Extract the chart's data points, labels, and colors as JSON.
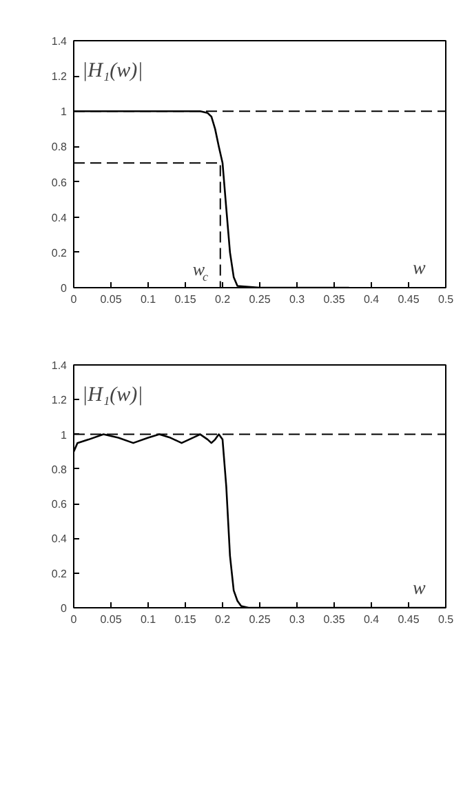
{
  "chart_data": [
    {
      "type": "line",
      "xlabel": "w",
      "ylabel": "|H₁(w)|",
      "xlim": [
        0,
        0.5
      ],
      "ylim": [
        0,
        1.4
      ],
      "xticks": [
        0,
        0.05,
        0.1,
        0.15,
        0.2,
        0.25,
        0.3,
        0.35,
        0.4,
        0.45,
        0.5
      ],
      "yticks": [
        0,
        0.2,
        0.4,
        0.6,
        0.8,
        1,
        1.2,
        1.4
      ],
      "grid": false,
      "series": [
        {
          "color": "#000000",
          "line_style": "solid",
          "x": [
            0,
            0.17,
            0.18,
            0.185,
            0.19,
            0.195,
            0.2,
            0.205,
            0.21,
            0.215,
            0.22,
            0.25,
            0.37
          ],
          "values": [
            1,
            1,
            0.99,
            0.97,
            0.9,
            0.8,
            0.707,
            0.45,
            0.2,
            0.06,
            0.01,
            0,
            0
          ]
        },
        {
          "color": "#000000",
          "line_style": "dashed",
          "x": [
            0,
            0.197,
            0.197
          ],
          "values": [
            0.707,
            0.707,
            0
          ]
        }
      ],
      "ref_lines": [
        {
          "axis": "y",
          "value": 1,
          "line_style": "dashed",
          "color": "#000000"
        }
      ],
      "annotations": [
        {
          "text": "w$_{c}$",
          "x": 0.197,
          "y": 0
        }
      ]
    },
    {
      "type": "line",
      "xlabel": "w",
      "ylabel": "|H₁(w)|",
      "xlim": [
        0,
        0.5
      ],
      "ylim": [
        0,
        1.4
      ],
      "xticks": [
        0,
        0.05,
        0.1,
        0.15,
        0.2,
        0.25,
        0.3,
        0.35,
        0.4,
        0.45,
        0.5
      ],
      "yticks": [
        0,
        0.2,
        0.4,
        0.6,
        0.8,
        1,
        1.2,
        1.4
      ],
      "grid": false,
      "series": [
        {
          "color": "#000000",
          "line_style": "solid",
          "x": [
            0,
            0.005,
            0.02,
            0.04,
            0.06,
            0.08,
            0.1,
            0.115,
            0.13,
            0.145,
            0.16,
            0.17,
            0.18,
            0.185,
            0.19,
            0.195,
            0.2,
            0.205,
            0.21,
            0.215,
            0.22,
            0.225,
            0.235,
            0.5
          ],
          "values": [
            0.9,
            0.95,
            0.97,
            1,
            0.98,
            0.95,
            0.98,
            1,
            0.98,
            0.95,
            0.98,
            1,
            0.97,
            0.95,
            0.97,
            1,
            0.97,
            0.7,
            0.3,
            0.1,
            0.04,
            0.01,
            0,
            0
          ]
        }
      ],
      "ref_lines": [
        {
          "axis": "y",
          "value": 1,
          "line_style": "dashed",
          "color": "#000000"
        }
      ]
    }
  ]
}
